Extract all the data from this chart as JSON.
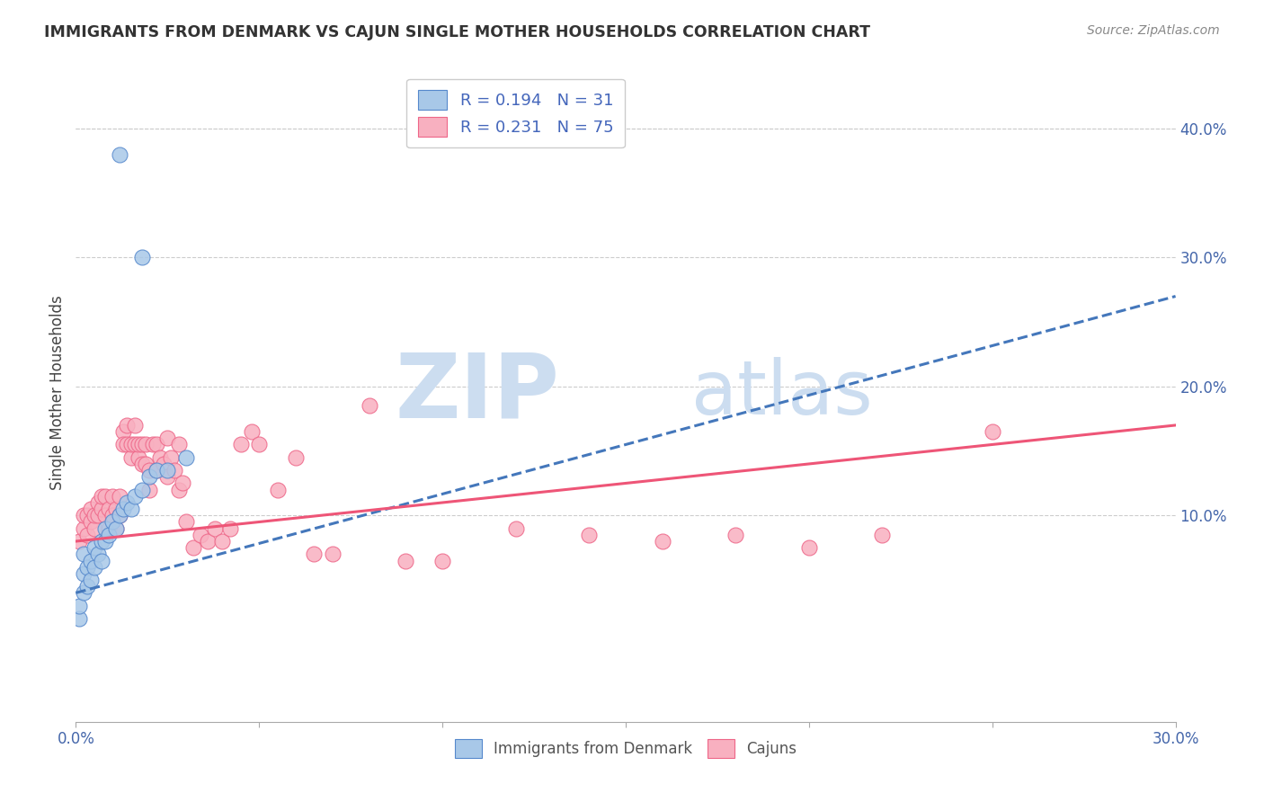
{
  "title": "IMMIGRANTS FROM DENMARK VS CAJUN SINGLE MOTHER HOUSEHOLDS CORRELATION CHART",
  "source": "Source: ZipAtlas.com",
  "ylabel": "Single Mother Households",
  "right_yticks": [
    "40.0%",
    "30.0%",
    "20.0%",
    "10.0%"
  ],
  "right_ytick_vals": [
    0.4,
    0.3,
    0.2,
    0.1
  ],
  "blue_color": "#a8c8e8",
  "pink_color": "#f8b0c0",
  "blue_edge_color": "#5588cc",
  "pink_edge_color": "#ee6688",
  "blue_line_color": "#4477bb",
  "pink_line_color": "#ee5577",
  "watermark_zip": "ZIP",
  "watermark_atlas": "atlas",
  "watermark_color": "#ccddf0",
  "xmin": 0.0,
  "xmax": 0.3,
  "ymin": -0.06,
  "ymax": 0.45,
  "blue_scatter_x": [
    0.001,
    0.001,
    0.002,
    0.002,
    0.002,
    0.003,
    0.003,
    0.004,
    0.004,
    0.005,
    0.005,
    0.006,
    0.007,
    0.007,
    0.008,
    0.008,
    0.009,
    0.01,
    0.011,
    0.012,
    0.013,
    0.014,
    0.015,
    0.016,
    0.018,
    0.02,
    0.022,
    0.025,
    0.03,
    0.018,
    0.012
  ],
  "blue_scatter_y": [
    0.02,
    0.03,
    0.04,
    0.055,
    0.07,
    0.045,
    0.06,
    0.05,
    0.065,
    0.075,
    0.06,
    0.07,
    0.065,
    0.08,
    0.08,
    0.09,
    0.085,
    0.095,
    0.09,
    0.1,
    0.105,
    0.11,
    0.105,
    0.115,
    0.12,
    0.13,
    0.135,
    0.135,
    0.145,
    0.3,
    0.38
  ],
  "pink_scatter_x": [
    0.001,
    0.002,
    0.002,
    0.003,
    0.003,
    0.004,
    0.004,
    0.005,
    0.005,
    0.006,
    0.006,
    0.007,
    0.007,
    0.008,
    0.008,
    0.009,
    0.009,
    0.01,
    0.01,
    0.011,
    0.011,
    0.012,
    0.012,
    0.013,
    0.013,
    0.014,
    0.014,
    0.015,
    0.015,
    0.016,
    0.016,
    0.017,
    0.017,
    0.018,
    0.018,
    0.019,
    0.019,
    0.02,
    0.02,
    0.021,
    0.022,
    0.022,
    0.023,
    0.024,
    0.025,
    0.025,
    0.026,
    0.027,
    0.028,
    0.028,
    0.029,
    0.03,
    0.032,
    0.034,
    0.036,
    0.038,
    0.04,
    0.042,
    0.045,
    0.048,
    0.05,
    0.055,
    0.06,
    0.065,
    0.07,
    0.08,
    0.09,
    0.1,
    0.12,
    0.14,
    0.16,
    0.18,
    0.2,
    0.22,
    0.25
  ],
  "pink_scatter_y": [
    0.08,
    0.09,
    0.1,
    0.085,
    0.1,
    0.095,
    0.105,
    0.09,
    0.1,
    0.1,
    0.11,
    0.105,
    0.115,
    0.1,
    0.115,
    0.09,
    0.105,
    0.1,
    0.115,
    0.09,
    0.105,
    0.1,
    0.115,
    0.165,
    0.155,
    0.155,
    0.17,
    0.145,
    0.155,
    0.155,
    0.17,
    0.145,
    0.155,
    0.14,
    0.155,
    0.14,
    0.155,
    0.12,
    0.135,
    0.155,
    0.155,
    0.135,
    0.145,
    0.14,
    0.13,
    0.16,
    0.145,
    0.135,
    0.12,
    0.155,
    0.125,
    0.095,
    0.075,
    0.085,
    0.08,
    0.09,
    0.08,
    0.09,
    0.155,
    0.165,
    0.155,
    0.12,
    0.145,
    0.07,
    0.07,
    0.185,
    0.065,
    0.065,
    0.09,
    0.085,
    0.08,
    0.085,
    0.075,
    0.085,
    0.165
  ],
  "blue_trend_x": [
    0.0,
    0.3
  ],
  "blue_trend_y": [
    0.04,
    0.27
  ],
  "pink_trend_x": [
    0.0,
    0.3
  ],
  "pink_trend_y": [
    0.08,
    0.17
  ]
}
